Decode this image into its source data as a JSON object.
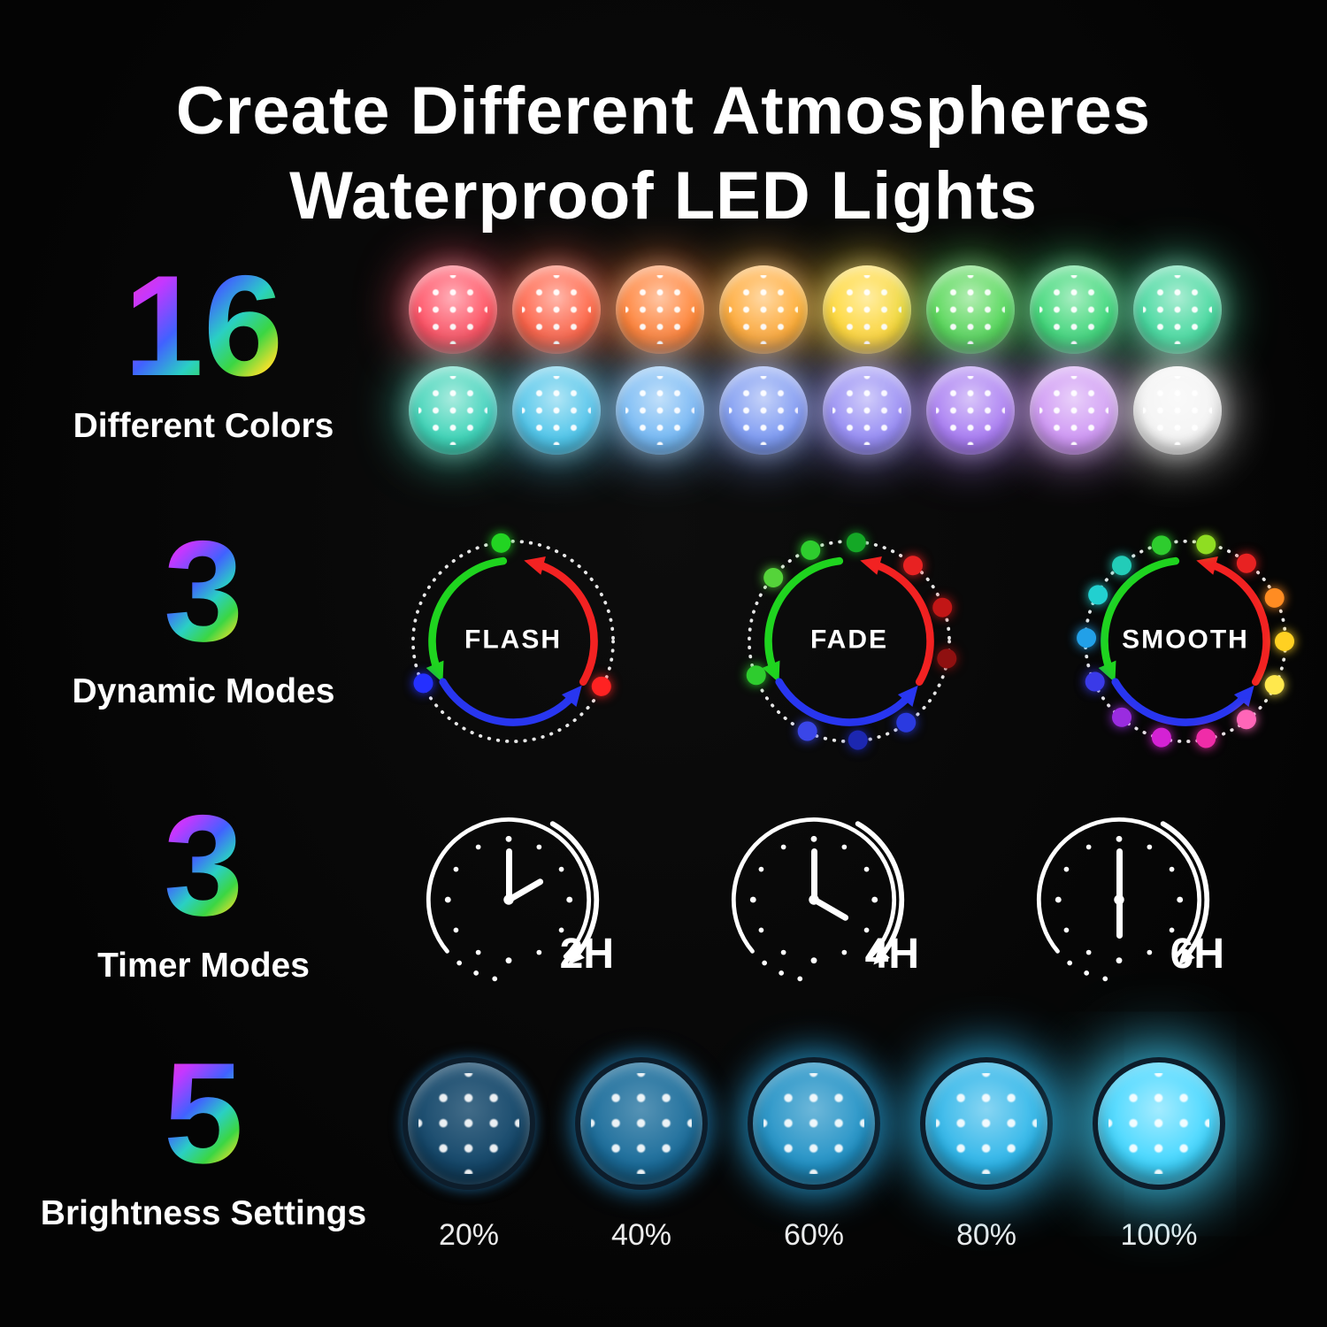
{
  "title": {
    "line1": "Create Different Atmospheres",
    "line2": "Waterproof LED Lights"
  },
  "sections": {
    "colors": {
      "number": "16",
      "label": "Different Colors",
      "row1": [
        "#ff5064",
        "#ff6247",
        "#ff8238",
        "#ffaa38",
        "#ffd838",
        "#58d858",
        "#3fd878",
        "#45d89e"
      ],
      "row2": [
        "#41d4b8",
        "#52c6ea",
        "#78baf4",
        "#7f9cf2",
        "#988ff4",
        "#a97ef2",
        "#cf98f4",
        "#f4f4f4"
      ]
    },
    "modes": {
      "number": "3",
      "label": "Dynamic Modes",
      "arrow_colors": {
        "green": "#1fd41f",
        "red": "#f22222",
        "blue": "#2836f0"
      },
      "dials": [
        {
          "label": "FLASH",
          "dots": [
            {
              "a": -97,
              "c": "#22d422"
            },
            {
              "a": 155,
              "c": "#2430ff"
            },
            {
              "a": 27,
              "c": "#ff2222"
            }
          ]
        },
        {
          "label": "FADE",
          "dots": [
            {
              "a": -140,
              "c": "#55d43a"
            },
            {
              "a": -113,
              "c": "#2ecc2e"
            },
            {
              "a": -86,
              "c": "#14a826"
            },
            {
              "a": -50,
              "c": "#e82222"
            },
            {
              "a": -20,
              "c": "#c21616"
            },
            {
              "a": 10,
              "c": "#8f1010"
            },
            {
              "a": 55,
              "c": "#2a3ae0"
            },
            {
              "a": 85,
              "c": "#1c27b0"
            },
            {
              "a": 115,
              "c": "#3a46e8"
            },
            {
              "a": 160,
              "c": "#2ecc2e"
            }
          ]
        },
        {
          "label": "SMOOTH",
          "dots": [
            {
              "a": -130,
              "c": "#22ccb8"
            },
            {
              "a": -104,
              "c": "#2ecc2e"
            },
            {
              "a": -78,
              "c": "#8fdd22"
            },
            {
              "a": -52,
              "c": "#e82222"
            },
            {
              "a": -26,
              "c": "#ff8c22"
            },
            {
              "a": 0,
              "c": "#ffd022"
            },
            {
              "a": 26,
              "c": "#ffe84d"
            },
            {
              "a": 52,
              "c": "#ff66b8"
            },
            {
              "a": 78,
              "c": "#f02ca8"
            },
            {
              "a": 104,
              "c": "#d422d4"
            },
            {
              "a": 130,
              "c": "#9a2ce0"
            },
            {
              "a": 156,
              "c": "#3a3ae8"
            },
            {
              "a": 182,
              "c": "#22a0e8"
            },
            {
              "a": 208,
              "c": "#22d0d0"
            }
          ]
        }
      ]
    },
    "timers": {
      "number": "3",
      "label": "Timer Modes",
      "clocks": [
        {
          "label": "2H",
          "hour_deg": 60
        },
        {
          "label": "4H",
          "hour_deg": 120
        },
        {
          "label": "6H",
          "hour_deg": 180
        }
      ]
    },
    "brightness": {
      "number": "5",
      "label": "Brightness Settings",
      "levels": [
        {
          "label": "20%",
          "c": "#15486b",
          "g": 0.18
        },
        {
          "label": "40%",
          "c": "#1b6d9b",
          "g": 0.35
        },
        {
          "label": "60%",
          "c": "#2292c6",
          "g": 0.55
        },
        {
          "label": "80%",
          "c": "#2db5e9",
          "g": 0.78
        },
        {
          "label": "100%",
          "c": "#41d6ff",
          "g": 1
        }
      ]
    }
  }
}
